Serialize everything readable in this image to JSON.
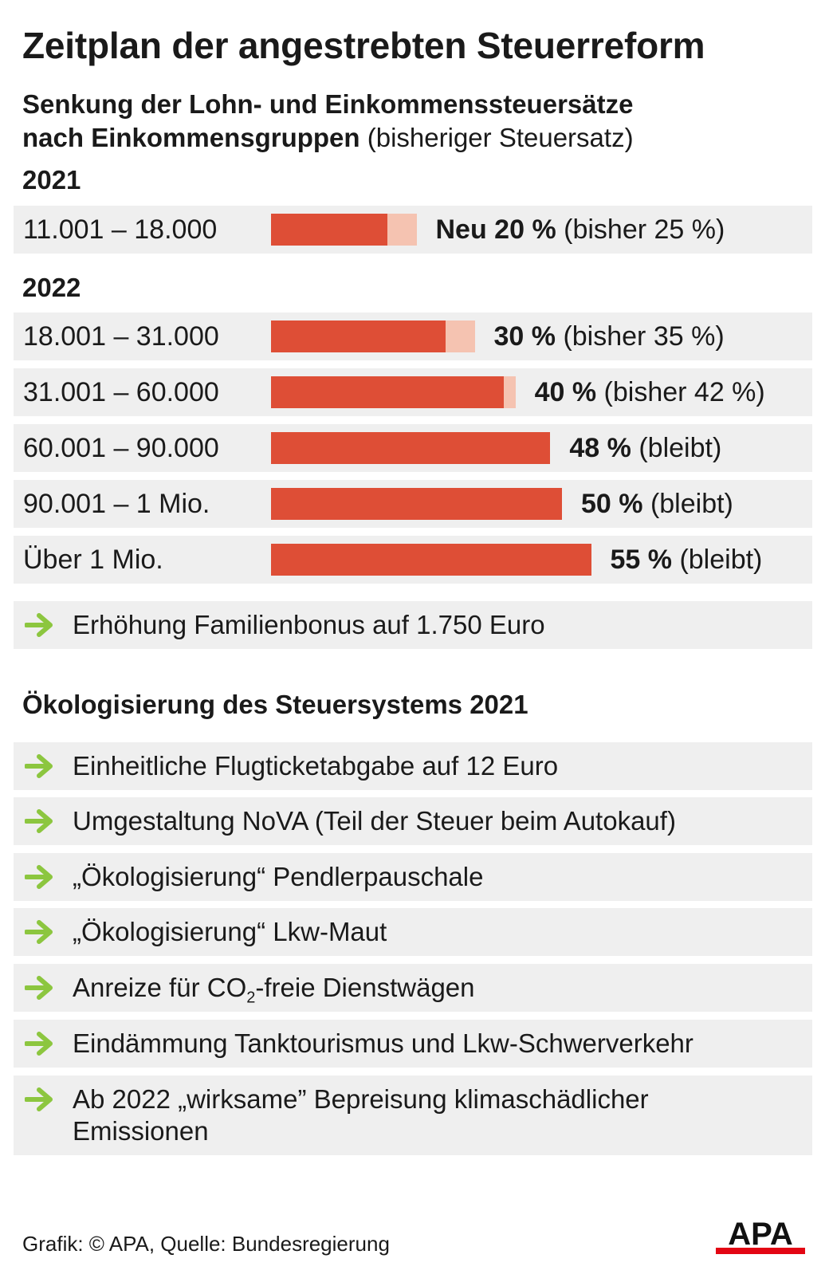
{
  "title": "Zeitplan der angestrebten Steuerreform",
  "subtitle_bold_1": "Senkung der Lohn- und Einkommenssteuersätze",
  "subtitle_bold_2": "nach Einkommensgruppen",
  "subtitle_normal": "(bisheriger Steuersatz)",
  "colors": {
    "new_rate": "#de4e36",
    "old_rate": "#f5c3b1",
    "row_bg": "#efefef",
    "arrow": "#8cc63f"
  },
  "chart_data": {
    "type": "bar",
    "orientation": "horizontal",
    "unit": "%",
    "groups": [
      {
        "year": "2021",
        "rows": [
          {
            "range": "11.001 – 18.000",
            "new": 20,
            "old": 25,
            "value_label": "Neu 20 %",
            "note": "(bisher 25 %)"
          }
        ]
      },
      {
        "year": "2022",
        "rows": [
          {
            "range": "18.001 – 31.000",
            "new": 30,
            "old": 35,
            "value_label": "30 %",
            "note": "(bisher 35 %)"
          },
          {
            "range": "31.001 – 60.000",
            "new": 40,
            "old": 42,
            "value_label": "40 %",
            "note": "(bisher 42 %)"
          },
          {
            "range": "60.001 – 90.000",
            "new": 48,
            "old": 48,
            "value_label": "48 %",
            "note": "(bleibt)"
          },
          {
            "range": "90.001 – 1 Mio.",
            "new": 50,
            "old": 50,
            "value_label": "50 %",
            "note": "(bleibt)"
          },
          {
            "range": "Über 1 Mio.",
            "new": 55,
            "old": 55,
            "value_label": "55 %",
            "note": "(bleibt)"
          }
        ]
      }
    ]
  },
  "familienbonus": "Erhöhung Familienbonus auf 1.750 Euro",
  "section2_title": "Ökologisierung des Steuersystems 2021",
  "eco_items": [
    "Einheitliche Flugticketabgabe auf 12 Euro",
    "Umgestaltung NoVA (Teil der Steuer beim Autokauf)",
    "„Ökologisierung“ Pendlerpauschale",
    "„Ökologisierung“ Lkw-Maut",
    "Eindämmung Tanktourismus und Lkw-Schwerverkehr",
    "Ab 2022 „wirksame” Bepreisung klimaschädlicher Emissionen"
  ],
  "co2_item": {
    "before": "Anreize für CO",
    "sub": "2",
    "after": "-freie Dienstwägen"
  },
  "source": "Grafik: © APA, Quelle: Bundesregierung",
  "logo_text": "APA"
}
